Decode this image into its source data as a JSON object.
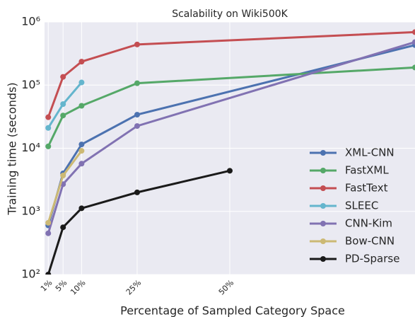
{
  "chart_data": {
    "type": "line",
    "title": "Scalability on Wiki500K",
    "xlabel": "Percentage of Sampled Category Space",
    "ylabel": "Training time (seconds)",
    "yscale": "log",
    "grid": true,
    "background": "#eaeaf2",
    "legend": "lower right",
    "xlim": [
      0,
      100
    ],
    "ylim": [
      100,
      1000000
    ],
    "xticks": [
      {
        "value": 1,
        "label": "1%"
      },
      {
        "value": 5,
        "label": "5%"
      },
      {
        "value": 10,
        "label": "10%"
      },
      {
        "value": 25,
        "label": "25%"
      },
      {
        "value": 50,
        "label": "50%"
      }
    ],
    "yticks": [
      {
        "value": 100,
        "label": "10²"
      },
      {
        "value": 1000,
        "label": "10³"
      },
      {
        "value": 10000,
        "label": "10⁴"
      },
      {
        "value": 100000,
        "label": "10⁵"
      },
      {
        "value": 1000000,
        "label": "10⁶"
      }
    ],
    "series": [
      {
        "name": "XML-CNN",
        "color": "#4c72b0",
        "x": [
          1,
          5,
          10,
          25,
          100
        ],
        "values": [
          600,
          4000,
          11500,
          34000,
          430000
        ]
      },
      {
        "name": "FastXML",
        "color": "#55a868",
        "x": [
          1,
          5,
          10,
          25,
          100
        ],
        "values": [
          10700,
          33000,
          47000,
          107000,
          190000
        ]
      },
      {
        "name": "FastText",
        "color": "#c44e52",
        "x": [
          1,
          5,
          10,
          25,
          100
        ],
        "values": [
          31000,
          135000,
          235000,
          440000,
          690000
        ]
      },
      {
        "name": "SLEEC",
        "color": "#64b5cd",
        "x": [
          1,
          5,
          10
        ],
        "values": [
          21000,
          50000,
          110000
        ]
      },
      {
        "name": "CNN-Kim",
        "color": "#8172b2",
        "x": [
          1,
          5,
          10,
          25,
          100
        ],
        "values": [
          450,
          2700,
          5700,
          22500,
          480000
        ]
      },
      {
        "name": "Bow-CNN",
        "color": "#ccb974",
        "x": [
          1,
          5,
          10
        ],
        "values": [
          660,
          3700,
          9100
        ]
      },
      {
        "name": "PD-Sparse",
        "color": "#1a1a1a",
        "x": [
          1,
          5,
          10,
          25,
          50
        ],
        "values": [
          100,
          560,
          1120,
          2000,
          4400
        ]
      }
    ]
  }
}
